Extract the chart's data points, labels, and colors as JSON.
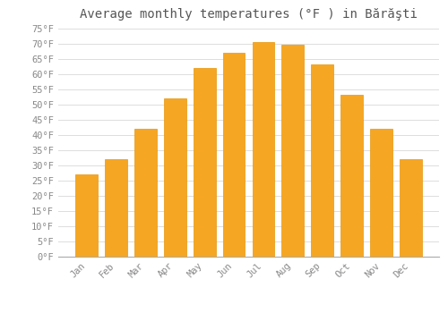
{
  "title": "Average monthly temperatures (°F ) in Bărăşti",
  "months": [
    "Jan",
    "Feb",
    "Mar",
    "Apr",
    "May",
    "Jun",
    "Jul",
    "Aug",
    "Sep",
    "Oct",
    "Nov",
    "Dec"
  ],
  "values": [
    27,
    32,
    42,
    52,
    62,
    67,
    70.5,
    69.5,
    63,
    53,
    42,
    32
  ],
  "bar_color_top": "#F5A623",
  "bar_color_bottom": "#F5A623",
  "bar_edge_color": "#E8960A",
  "background_color": "#ffffff",
  "grid_color": "#dddddd",
  "ylim": [
    0,
    75
  ],
  "yticks": [
    0,
    5,
    10,
    15,
    20,
    25,
    30,
    35,
    40,
    45,
    50,
    55,
    60,
    65,
    70,
    75
  ],
  "ytick_labels": [
    "0°F",
    "5°F",
    "10°F",
    "15°F",
    "20°F",
    "25°F",
    "30°F",
    "35°F",
    "40°F",
    "45°F",
    "50°F",
    "55°F",
    "60°F",
    "65°F",
    "70°F",
    "75°F"
  ],
  "title_fontsize": 10,
  "tick_fontsize": 7.5,
  "font_family": "monospace",
  "tick_color": "#888888",
  "title_color": "#555555"
}
